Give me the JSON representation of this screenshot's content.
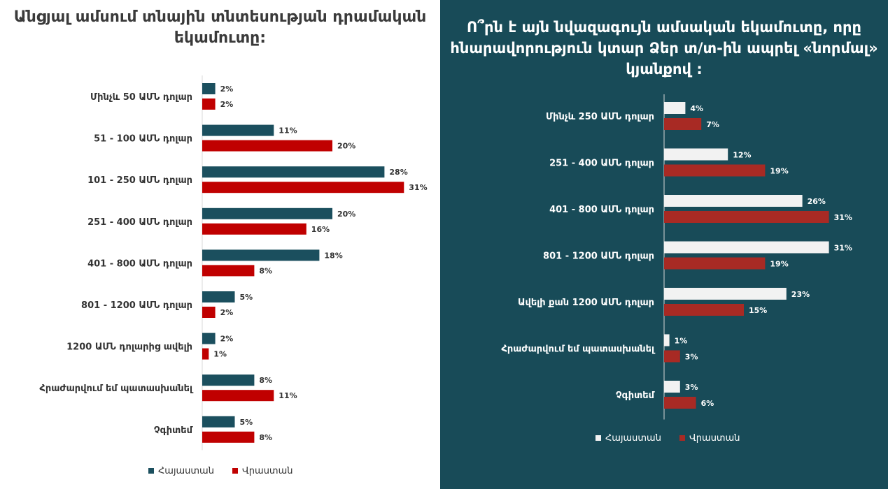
{
  "chart_data": [
    {
      "type": "bar",
      "orientation": "horizontal",
      "title": "Անցյալ ամսում տնային տնտեսության դրամական եկամուտը:",
      "categories": [
        "Մինչև 50 ԱՄՆ դոլար",
        "51 - 100 ԱՄՆ դոլար",
        "101 - 250 ԱՄՆ դոլար",
        "251 - 400 ԱՄՆ դոլար",
        "401 - 800 ԱՄՆ դոլար",
        "801 - 1200 ԱՄՆ դոլար",
        "1200 ԱՄՆ դոլարից ավելի",
        "Հրաժարվում եմ պատասխանել",
        "Չգիտեմ"
      ],
      "series": [
        {
          "name": "Հայաստան",
          "color": "#1b4f5e",
          "values": [
            2,
            11,
            28,
            20,
            18,
            5,
            2,
            8,
            5
          ]
        },
        {
          "name": "Վրաստան",
          "color": "#c00000",
          "values": [
            2,
            20,
            31,
            16,
            8,
            2,
            1,
            11,
            8
          ]
        }
      ],
      "unit": "%",
      "legend": "bottom"
    },
    {
      "type": "bar",
      "orientation": "horizontal",
      "title": "Ո՞րն է այն նվազագույն ամսական եկամուտը, որը հնարավորություն կտար Ձեր տ/տ-ին ապրել «նորմալ» կյանքով :",
      "categories": [
        "Մինչև 250 ԱՄՆ դոլար",
        "251 - 400 ԱՄՆ դոլար",
        "401 - 800 ԱՄՆ դոլար",
        "801 - 1200 ԱՄՆ դոլար",
        "Ավելի քան 1200 ԱՄՆ դոլար",
        "Հրաժարվում եմ պատասխանել",
        "Չգիտեմ"
      ],
      "series": [
        {
          "name": "Հայաստան",
          "color": "#f2f2f2",
          "values": [
            4,
            12,
            26,
            31,
            23,
            1,
            3
          ]
        },
        {
          "name": "Վրաստան",
          "color": "#a82a24",
          "values": [
            7,
            19,
            31,
            19,
            15,
            3,
            6
          ]
        }
      ],
      "unit": "%",
      "legend": "bottom"
    }
  ]
}
